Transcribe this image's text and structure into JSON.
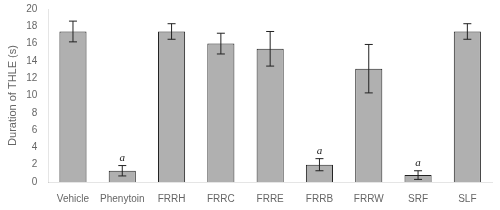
{
  "chart_data": {
    "type": "bar",
    "categories": [
      "Vehicle",
      "Phenytoin",
      "FRRH",
      "FRRC",
      "FRRE",
      "FRRB",
      "FRRW",
      "SRF",
      "SLF"
    ],
    "values": [
      17.4,
      1.3,
      17.4,
      16.0,
      15.4,
      2.0,
      13.1,
      0.8,
      17.4
    ],
    "errors": [
      1.2,
      0.6,
      0.9,
      1.2,
      2.0,
      0.7,
      2.8,
      0.5,
      0.9
    ],
    "color": "#b0b0b0",
    "ylabel": "Duration of THLE (s)",
    "ylim": [
      0,
      20
    ],
    "yticks": [
      0,
      2,
      4,
      6,
      8,
      10,
      12,
      14,
      16,
      18,
      20
    ],
    "annotations": [
      {
        "text": "a",
        "category": "Phenytoin"
      },
      {
        "text": "a",
        "category": "FRRB"
      },
      {
        "text": "a",
        "category": "SRF"
      }
    ],
    "grid": false
  }
}
